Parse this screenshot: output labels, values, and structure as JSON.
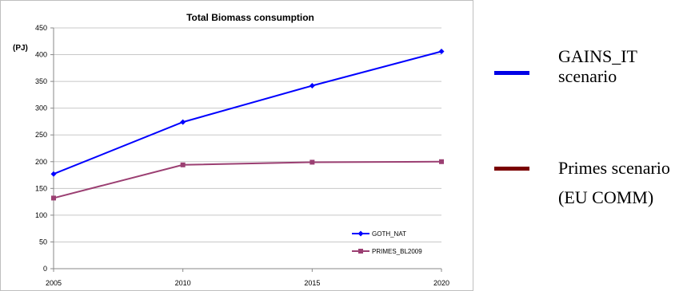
{
  "chart_data": {
    "type": "line",
    "title": "Total Biomass consumption",
    "ylabel": "(PJ)",
    "xlabel": "",
    "x": [
      2005,
      2010,
      2015,
      2020
    ],
    "ylim": [
      0,
      450
    ],
    "yticks": [
      0,
      50,
      100,
      150,
      200,
      250,
      300,
      350,
      400,
      450
    ],
    "grid": true,
    "legend_position": "bottom-right",
    "series": [
      {
        "name": "GOTH_NAT",
        "values": [
          177,
          274,
          342,
          406
        ],
        "color": "#0000ff",
        "marker": "diamond"
      },
      {
        "name": "PRIMES_BL2009",
        "values": [
          132,
          194,
          199,
          200
        ],
        "color": "#9b3f72",
        "marker": "square"
      }
    ]
  },
  "side_legend": [
    {
      "line1": "GAINS_IT",
      "line2": "scenario",
      "color": "#0000e6"
    },
    {
      "line1": "Primes scenario",
      "line2": "(EU COMM)",
      "color": "#7a0000"
    }
  ]
}
